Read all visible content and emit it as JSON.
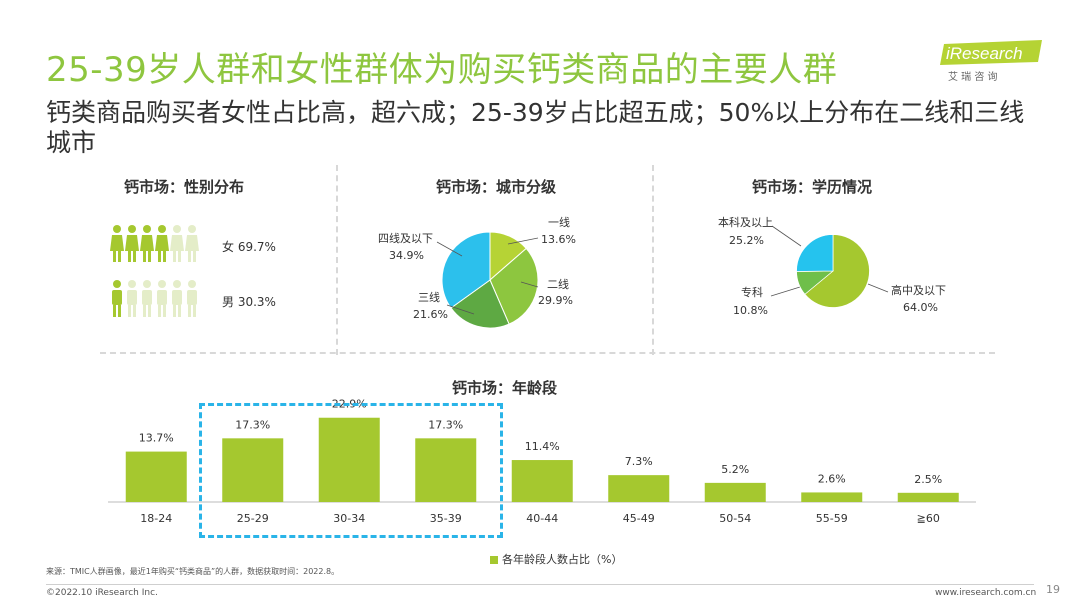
{
  "header": {
    "title": "25-39岁人群和女性群体为购买钙类商品的主要人群",
    "subtitle": "钙类商品购买者女性占比高，超六成；25-39岁占比超五成；50%以上分布在二线和三线城市",
    "logo_text": "iResearch",
    "logo_sub": "艾 瑞 咨 询"
  },
  "colors": {
    "green_bar": "#a5c82f",
    "green_title": "#8ec63f",
    "female_icon": "#a5c82f",
    "male_icon": "#a5c82f",
    "faded_icon": "#e4edc8",
    "highlight_box": "#2ab4e8",
    "pie_tier1": "#b6d335",
    "pie_tier2": "#8dc63f",
    "pie_tier3": "#5ea943",
    "pie_tier4": "#2cc0ec",
    "pie_edu_high": "#a5c82f",
    "pie_edu_college": "#6fbf4a",
    "pie_edu_bachelor": "#25c3ee"
  },
  "gender": {
    "title": "钙市场：性别分布",
    "female_label": "女 69.7%",
    "male_label": "男 30.3%"
  },
  "chart_data": [
    {
      "type": "pie",
      "title": "钙市场：城市分级",
      "slices": [
        {
          "label": "一线",
          "value": 13.6,
          "value_label": "13.6%"
        },
        {
          "label": "二线",
          "value": 29.9,
          "value_label": "29.9%"
        },
        {
          "label": "三线",
          "value": 21.6,
          "value_label": "21.6%"
        },
        {
          "label": "四线及以下",
          "value": 34.9,
          "value_label": "34.9%"
        }
      ]
    },
    {
      "type": "pie",
      "title": "钙市场：学历情况",
      "slices": [
        {
          "label": "高中及以下",
          "value": 64.0,
          "value_label": "64.0%"
        },
        {
          "label": "专科",
          "value": 10.8,
          "value_label": "10.8%"
        },
        {
          "label": "本科及以上",
          "value": 25.2,
          "value_label": "25.2%"
        }
      ]
    },
    {
      "type": "bar",
      "title": "钙市场：年龄段",
      "categories": [
        "18-24",
        "25-29",
        "30-34",
        "35-39",
        "40-44",
        "45-49",
        "50-54",
        "55-59",
        "≧60"
      ],
      "series": [
        {
          "name": "各年龄段人数占比（%）",
          "values": [
            13.7,
            17.3,
            22.9,
            17.3,
            11.4,
            7.3,
            5.2,
            2.6,
            2.5
          ]
        }
      ],
      "value_labels": [
        "13.7%",
        "17.3%",
        "22.9%",
        "17.3%",
        "11.4%",
        "7.3%",
        "5.2%",
        "2.6%",
        "2.5%"
      ],
      "ylim": [
        0,
        25
      ],
      "legend": "bottom-center"
    }
  ],
  "footer": {
    "source": "来源：TMIC人群画像，最近1年购买“钙类商品”的人群，数据获取时间：2022.8。",
    "copyright": "©2022.10 iResearch Inc.",
    "url": "www.iresearch.com.cn",
    "page": "19"
  }
}
